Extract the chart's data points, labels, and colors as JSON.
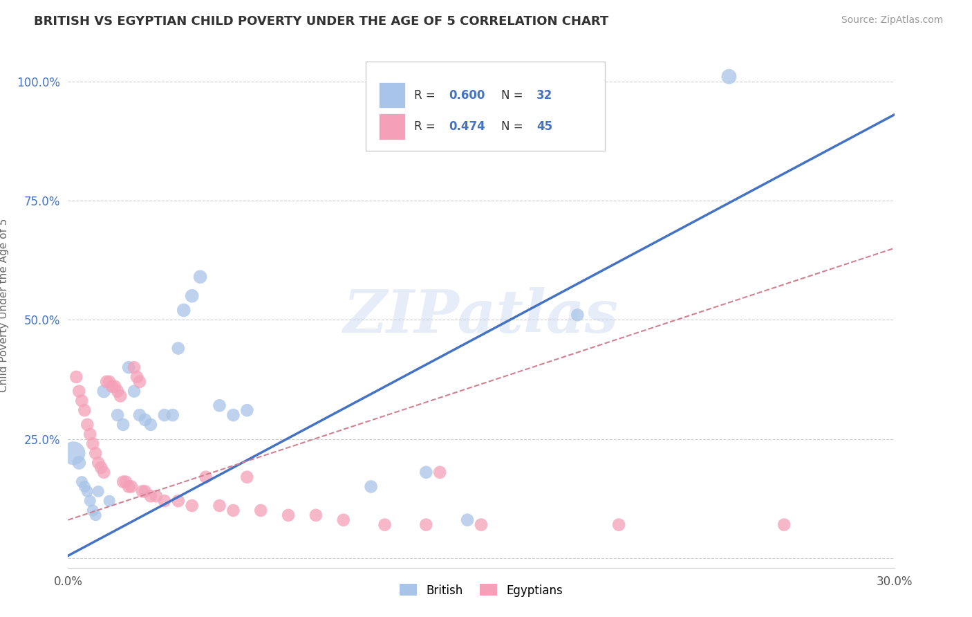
{
  "title": "BRITISH VS EGYPTIAN CHILD POVERTY UNDER THE AGE OF 5 CORRELATION CHART",
  "source": "Source: ZipAtlas.com",
  "ylabel": "Child Poverty Under the Age of 5",
  "xlim": [
    0.0,
    0.3
  ],
  "ylim": [
    -0.02,
    1.08
  ],
  "xticks": [
    0.0,
    0.05,
    0.1,
    0.15,
    0.2,
    0.25,
    0.3
  ],
  "xticklabels": [
    "0.0%",
    "",
    "",
    "",
    "",
    "",
    "30.0%"
  ],
  "yticks": [
    0.0,
    0.25,
    0.5,
    0.75,
    1.0
  ],
  "yticklabels": [
    "",
    "25.0%",
    "50.0%",
    "75.0%",
    "100.0%"
  ],
  "british_R": "0.600",
  "british_N": "32",
  "egyptian_R": "0.474",
  "egyptian_N": "45",
  "british_color": "#a8c4e8",
  "british_line_color": "#4472c4",
  "egyptian_color": "#f4a0b8",
  "egyptian_line_dashed_color": "#d08090",
  "watermark": "ZIPatlas",
  "grid_color": "#cccccc",
  "background_color": "#ffffff",
  "british_line": [
    0.0,
    0.005,
    0.3,
    0.93
  ],
  "egyptian_line": [
    0.0,
    0.08,
    0.3,
    0.65
  ],
  "british_points": [
    [
      0.002,
      0.22,
      600
    ],
    [
      0.004,
      0.2,
      200
    ],
    [
      0.005,
      0.16,
      150
    ],
    [
      0.006,
      0.15,
      150
    ],
    [
      0.007,
      0.14,
      150
    ],
    [
      0.008,
      0.12,
      150
    ],
    [
      0.009,
      0.1,
      150
    ],
    [
      0.01,
      0.09,
      150
    ],
    [
      0.011,
      0.14,
      150
    ],
    [
      0.013,
      0.35,
      200
    ],
    [
      0.015,
      0.12,
      150
    ],
    [
      0.018,
      0.3,
      180
    ],
    [
      0.02,
      0.28,
      180
    ],
    [
      0.022,
      0.4,
      180
    ],
    [
      0.024,
      0.35,
      180
    ],
    [
      0.026,
      0.3,
      180
    ],
    [
      0.028,
      0.29,
      180
    ],
    [
      0.03,
      0.28,
      180
    ],
    [
      0.035,
      0.3,
      180
    ],
    [
      0.038,
      0.3,
      180
    ],
    [
      0.04,
      0.44,
      180
    ],
    [
      0.042,
      0.52,
      200
    ],
    [
      0.045,
      0.55,
      200
    ],
    [
      0.048,
      0.59,
      200
    ],
    [
      0.055,
      0.32,
      180
    ],
    [
      0.06,
      0.3,
      180
    ],
    [
      0.065,
      0.31,
      180
    ],
    [
      0.11,
      0.15,
      180
    ],
    [
      0.13,
      0.18,
      180
    ],
    [
      0.145,
      0.08,
      180
    ],
    [
      0.185,
      0.51,
      180
    ],
    [
      0.24,
      1.01,
      250
    ]
  ],
  "egyptian_points": [
    [
      0.003,
      0.38,
      180
    ],
    [
      0.004,
      0.35,
      180
    ],
    [
      0.005,
      0.33,
      180
    ],
    [
      0.006,
      0.31,
      180
    ],
    [
      0.007,
      0.28,
      180
    ],
    [
      0.008,
      0.26,
      180
    ],
    [
      0.009,
      0.24,
      180
    ],
    [
      0.01,
      0.22,
      180
    ],
    [
      0.011,
      0.2,
      180
    ],
    [
      0.012,
      0.19,
      180
    ],
    [
      0.013,
      0.18,
      180
    ],
    [
      0.014,
      0.37,
      180
    ],
    [
      0.015,
      0.37,
      180
    ],
    [
      0.016,
      0.36,
      180
    ],
    [
      0.017,
      0.36,
      180
    ],
    [
      0.018,
      0.35,
      180
    ],
    [
      0.019,
      0.34,
      180
    ],
    [
      0.02,
      0.16,
      180
    ],
    [
      0.021,
      0.16,
      180
    ],
    [
      0.022,
      0.15,
      180
    ],
    [
      0.023,
      0.15,
      180
    ],
    [
      0.024,
      0.4,
      180
    ],
    [
      0.025,
      0.38,
      180
    ],
    [
      0.026,
      0.37,
      180
    ],
    [
      0.027,
      0.14,
      180
    ],
    [
      0.028,
      0.14,
      180
    ],
    [
      0.03,
      0.13,
      180
    ],
    [
      0.032,
      0.13,
      180
    ],
    [
      0.035,
      0.12,
      180
    ],
    [
      0.04,
      0.12,
      180
    ],
    [
      0.045,
      0.11,
      180
    ],
    [
      0.05,
      0.17,
      180
    ],
    [
      0.055,
      0.11,
      180
    ],
    [
      0.06,
      0.1,
      180
    ],
    [
      0.065,
      0.17,
      180
    ],
    [
      0.07,
      0.1,
      180
    ],
    [
      0.08,
      0.09,
      180
    ],
    [
      0.09,
      0.09,
      180
    ],
    [
      0.1,
      0.08,
      180
    ],
    [
      0.115,
      0.07,
      180
    ],
    [
      0.13,
      0.07,
      180
    ],
    [
      0.135,
      0.18,
      180
    ],
    [
      0.15,
      0.07,
      180
    ],
    [
      0.2,
      0.07,
      180
    ],
    [
      0.26,
      0.07,
      180
    ]
  ]
}
